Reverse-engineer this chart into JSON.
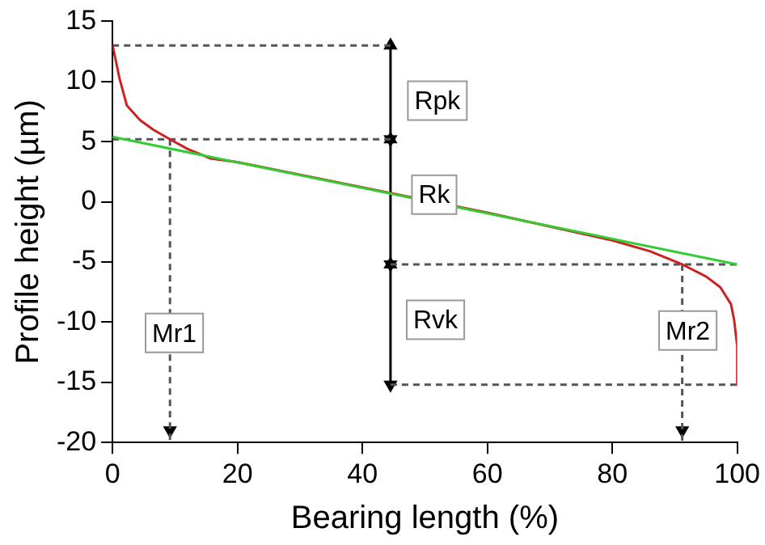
{
  "chart_data": {
    "type": "line",
    "xlabel": "Bearing length (%)",
    "ylabel": "Profile height (µm)",
    "xlim": [
      0,
      100
    ],
    "xticks": [
      0,
      20,
      40,
      60,
      80,
      100
    ],
    "ylim": [
      -20,
      15
    ],
    "yticks": [
      -20,
      -15,
      -10,
      -5,
      0,
      5,
      10,
      15
    ],
    "legend": false,
    "marker": "none",
    "series": [
      {
        "color": "#33cc33",
        "x": [
          0,
          100
        ],
        "values": [
          5.4,
          -5.2
        ]
      },
      {
        "color": "#cc2222",
        "x": [
          0,
          0.5,
          1.1,
          2.3,
          4.4,
          6.5,
          9.2,
          12,
          15.7,
          20,
          40,
          60,
          80,
          86,
          91.2,
          95,
          97.3,
          99,
          99.5,
          100,
          100
        ],
        "values": [
          13,
          11.8,
          10.3,
          8,
          6.8,
          6,
          5.2,
          4.4,
          3.6,
          3.3,
          1.2,
          -0.9,
          -3.2,
          -4.1,
          -5.2,
          -6.2,
          -7.1,
          -8.5,
          -9.8,
          -12,
          -15.2
        ]
      },
      {
        "color": "#555555",
        "line_style": "dashed",
        "x": [
          0,
          44.5
        ],
        "values": [
          13,
          13
        ]
      },
      {
        "color": "#555555",
        "line_style": "dashed",
        "x": [
          0,
          44.5
        ],
        "values": [
          5.2,
          5.2
        ]
      },
      {
        "color": "#555555",
        "line_style": "dashed",
        "x": [
          44.5,
          100
        ],
        "values": [
          -5.2,
          -5.2
        ]
      },
      {
        "color": "#555555",
        "line_style": "dashed",
        "x": [
          44.5,
          100
        ],
        "values": [
          -15.2,
          -15.2
        ]
      },
      {
        "color": "#555555",
        "line_style": "dashed",
        "x": [
          9.2,
          9.2
        ],
        "values": [
          5.2,
          -20
        ]
      },
      {
        "color": "#555555",
        "line_style": "dashed",
        "x": [
          91.2,
          91.2
        ],
        "values": [
          -5.2,
          -20
        ]
      },
      {
        "color": "#000000",
        "marker": "triangle",
        "x": [
          44.5,
          44.5
        ],
        "values": [
          13,
          5.2
        ]
      },
      {
        "color": "#000000",
        "marker": "triangle",
        "x": [
          44.5,
          44.5
        ],
        "values": [
          5.2,
          -5.2
        ]
      },
      {
        "color": "#000000",
        "marker": "triangle",
        "x": [
          44.5,
          44.5
        ],
        "values": [
          -5.2,
          -15.2
        ]
      },
      {
        "type": "scatter",
        "color": "#000000",
        "marker": "triangle",
        "x": [
          9.2
        ],
        "values": [
          -19
        ]
      },
      {
        "type": "scatter",
        "color": "#000000",
        "marker": "triangle",
        "x": [
          91.2
        ],
        "values": [
          -19
        ]
      }
    ],
    "annotations": [
      {
        "text": "Rpk",
        "x": 52,
        "y": 8.4
      },
      {
        "text": "Rk",
        "x": 51.5,
        "y": 0.6
      },
      {
        "text": "Rvk",
        "x": 51.7,
        "y": -9.8
      },
      {
        "text": "Mr1",
        "x": 9.9,
        "y": -10.9
      },
      {
        "text": "Mr2",
        "x": 92.1,
        "y": -10.7
      }
    ]
  }
}
